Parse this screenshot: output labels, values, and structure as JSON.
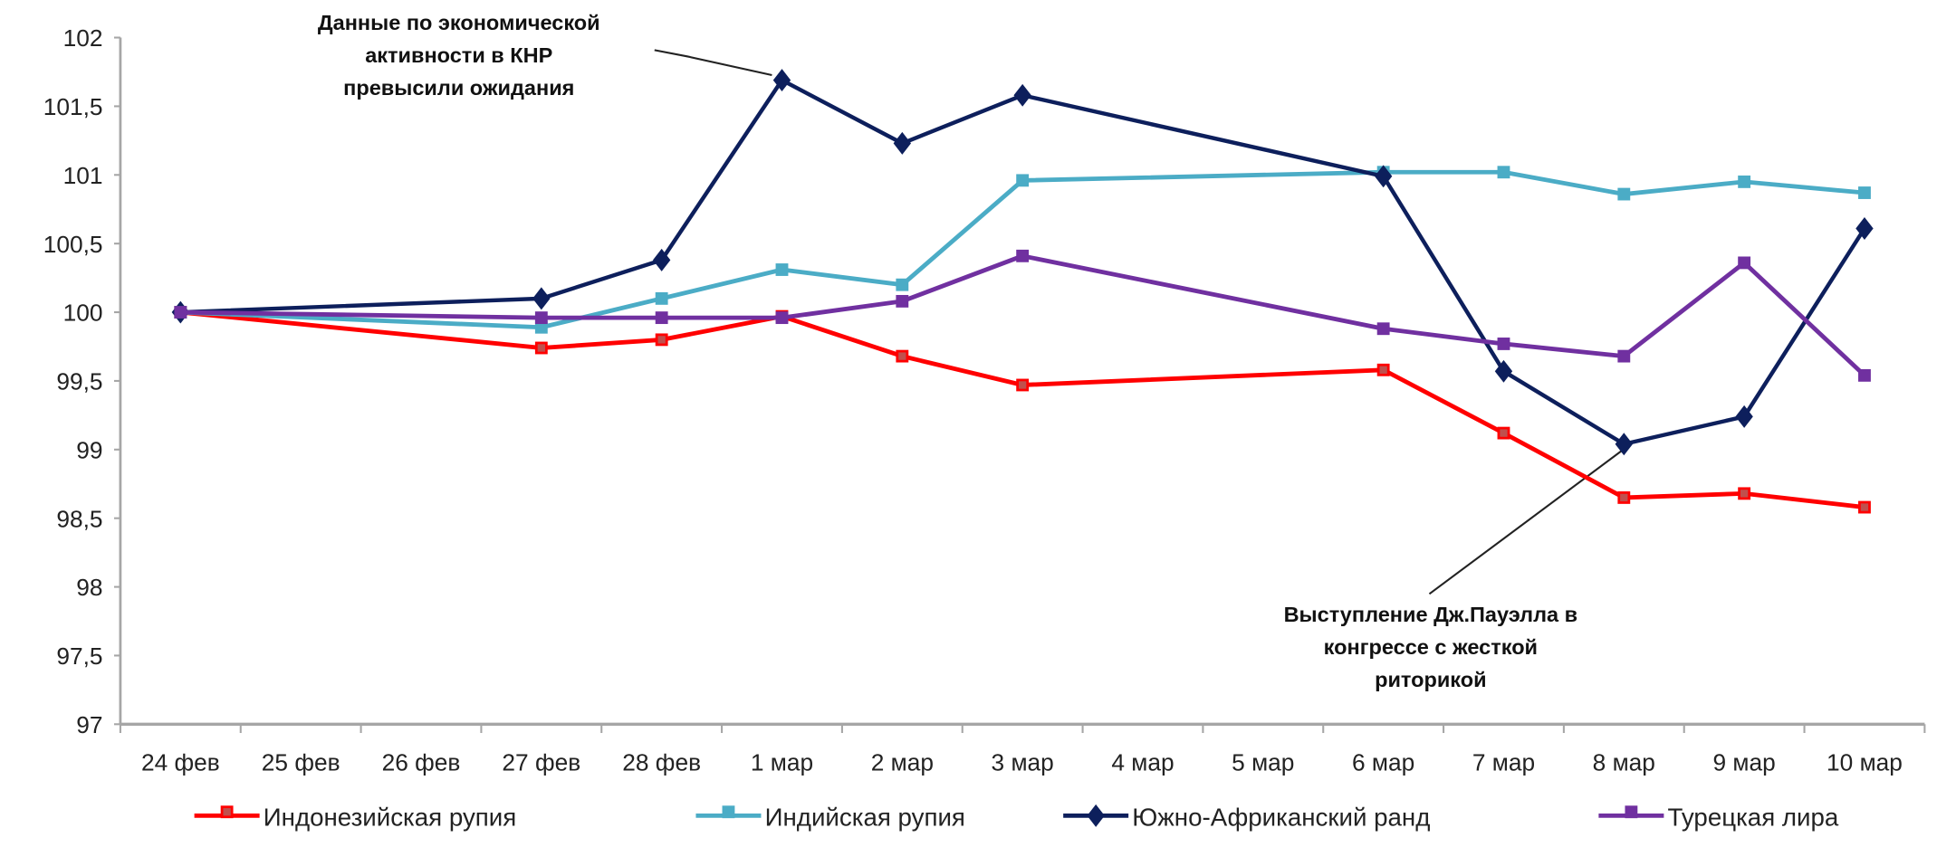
{
  "chart_data": {
    "type": "line",
    "title": "",
    "xlabel": "",
    "ylabel": "",
    "ylim": [
      97,
      102
    ],
    "yticks": [
      "102",
      "101,5",
      "101",
      "100,5",
      "100",
      "99,5",
      "99",
      "98,5",
      "98",
      "97,5",
      "97"
    ],
    "ytick_values": [
      102,
      101.5,
      101,
      100.5,
      100,
      99.5,
      99,
      98.5,
      98,
      97.5,
      97
    ],
    "grid": false,
    "legend_position": "bottom",
    "categories": [
      "24 фев",
      "25 фев",
      "26 фев",
      "27 фев",
      "28 фев",
      "1 мар",
      "2 мар",
      "3 мар",
      "4 мар",
      "5 мар",
      "6 мар",
      "7 мар",
      "8 мар",
      "9 мар",
      "10 мар"
    ],
    "series": [
      {
        "name": "Индонезийская рупия",
        "color": "#ff0000",
        "marker": "square-open",
        "values": [
          100,
          null,
          null,
          99.74,
          99.8,
          99.97,
          99.68,
          99.47,
          null,
          null,
          99.58,
          99.12,
          98.65,
          98.68,
          98.58
        ]
      },
      {
        "name": "Индийская рупия",
        "color": "#4bacc6",
        "marker": "square",
        "values": [
          100,
          null,
          null,
          99.89,
          100.1,
          100.31,
          100.2,
          100.96,
          null,
          null,
          101.02,
          101.02,
          100.86,
          100.95,
          100.87
        ]
      },
      {
        "name": "Южно-Африканский ранд",
        "color": "#0d1f5c",
        "marker": "diamond",
        "values": [
          100,
          null,
          null,
          100.1,
          100.38,
          101.69,
          101.23,
          101.58,
          null,
          null,
          100.99,
          99.57,
          99.04,
          99.24,
          100.61
        ]
      },
      {
        "name": "Турецкая лира",
        "color": "#7030a0",
        "marker": "square",
        "values": [
          100,
          null,
          null,
          99.96,
          99.96,
          99.96,
          100.08,
          100.41,
          null,
          null,
          99.88,
          99.77,
          99.68,
          100.36,
          99.54
        ]
      }
    ],
    "annotations": [
      {
        "lines": [
          "Данные по экономической",
          "активности в КНР",
          "превысили ожидания"
        ],
        "points_to": {
          "category": "1 мар",
          "series": "Южно-Африканский ранд"
        }
      },
      {
        "lines": [
          "Выступление Дж.Пауэлла в",
          "конгрессе с жесткой",
          "риторикой"
        ],
        "points_to": {
          "category": "8 мар",
          "series": "Южно-Африканский ранд"
        }
      }
    ]
  }
}
